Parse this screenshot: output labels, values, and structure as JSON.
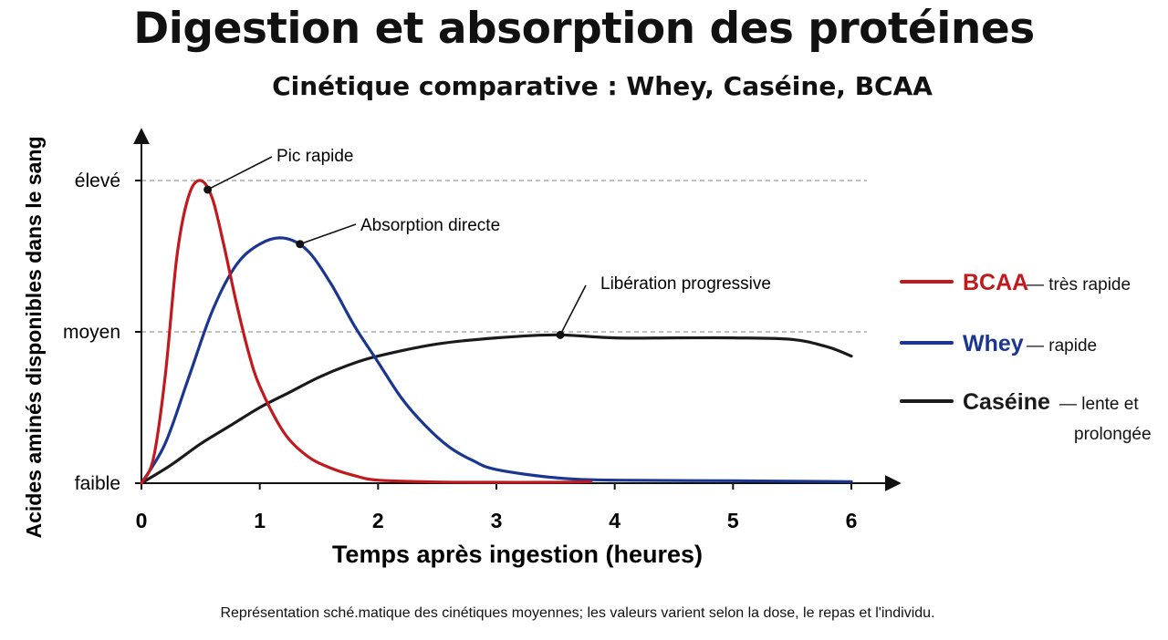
{
  "page": {
    "title": "Digestion et absorption des protéines",
    "subtitle": "Cinétique comparative : Whey, Caséine, BCAA",
    "footnote": "Représentation sché.matique des cinétiques moyennes; les valeurs varient selon la dose, le repas et l'individu."
  },
  "chart_data": {
    "type": "line",
    "xlabel": "Temps après ingestion (heures)",
    "ylabel": "Acides aminés disponibles dans le sang",
    "xlim": [
      0,
      6
    ],
    "x_ticks": [
      "0",
      "1",
      "2",
      "3",
      "4",
      "5",
      "6"
    ],
    "y_ticks": [
      {
        "label": "faible",
        "value": 0
      },
      {
        "label": "moyen",
        "value": 0.5
      },
      {
        "label": "élevé",
        "value": 1.0
      }
    ],
    "ylim": [
      0,
      1.05
    ],
    "reference_lines": [
      0.5,
      1.0
    ],
    "legend_position": "right",
    "series": [
      {
        "name": "BCAA",
        "description": "— très rapide",
        "color": "#c0191e",
        "x": [
          0,
          0.1,
          0.2,
          0.3,
          0.4,
          0.5,
          0.6,
          0.7,
          0.8,
          0.9,
          1.0,
          1.2,
          1.4,
          1.6,
          1.8,
          2.0,
          2.5,
          3.0,
          3.5,
          3.8
        ],
        "y": [
          0,
          0.08,
          0.35,
          0.75,
          0.95,
          1.0,
          0.94,
          0.78,
          0.6,
          0.44,
          0.32,
          0.17,
          0.09,
          0.05,
          0.025,
          0.01,
          0.004,
          0.003,
          0.003,
          0.005
        ]
      },
      {
        "name": "Whey",
        "description": "— rapide",
        "color": "#1a3690",
        "x": [
          0,
          0.2,
          0.4,
          0.6,
          0.8,
          1.0,
          1.2,
          1.4,
          1.6,
          1.8,
          2.0,
          2.2,
          2.4,
          2.6,
          2.8,
          3.0,
          3.5,
          4.0,
          5.0,
          6.0
        ],
        "y": [
          0,
          0.13,
          0.35,
          0.57,
          0.72,
          0.79,
          0.81,
          0.77,
          0.66,
          0.52,
          0.4,
          0.28,
          0.19,
          0.12,
          0.075,
          0.045,
          0.018,
          0.01,
          0.008,
          0.005
        ]
      },
      {
        "name": "Caséine",
        "description": "— lente et prolongée",
        "color": "#1a1a1a",
        "x": [
          0,
          0.25,
          0.5,
          0.75,
          1.0,
          1.25,
          1.5,
          1.75,
          2.0,
          2.5,
          3.0,
          3.5,
          4.0,
          4.5,
          5.0,
          5.5,
          5.8,
          6.0
        ],
        "y": [
          0,
          0.06,
          0.13,
          0.19,
          0.25,
          0.3,
          0.35,
          0.39,
          0.42,
          0.46,
          0.48,
          0.49,
          0.48,
          0.48,
          0.48,
          0.475,
          0.45,
          0.42
        ]
      }
    ],
    "annotations": [
      {
        "text": "Pic rapide",
        "x": 0.56,
        "y": 0.97
      },
      {
        "text": "Absorption directe",
        "x": 1.34,
        "y": 0.79
      },
      {
        "text": "Libération progressive",
        "x": 3.54,
        "y": 0.49
      }
    ]
  }
}
